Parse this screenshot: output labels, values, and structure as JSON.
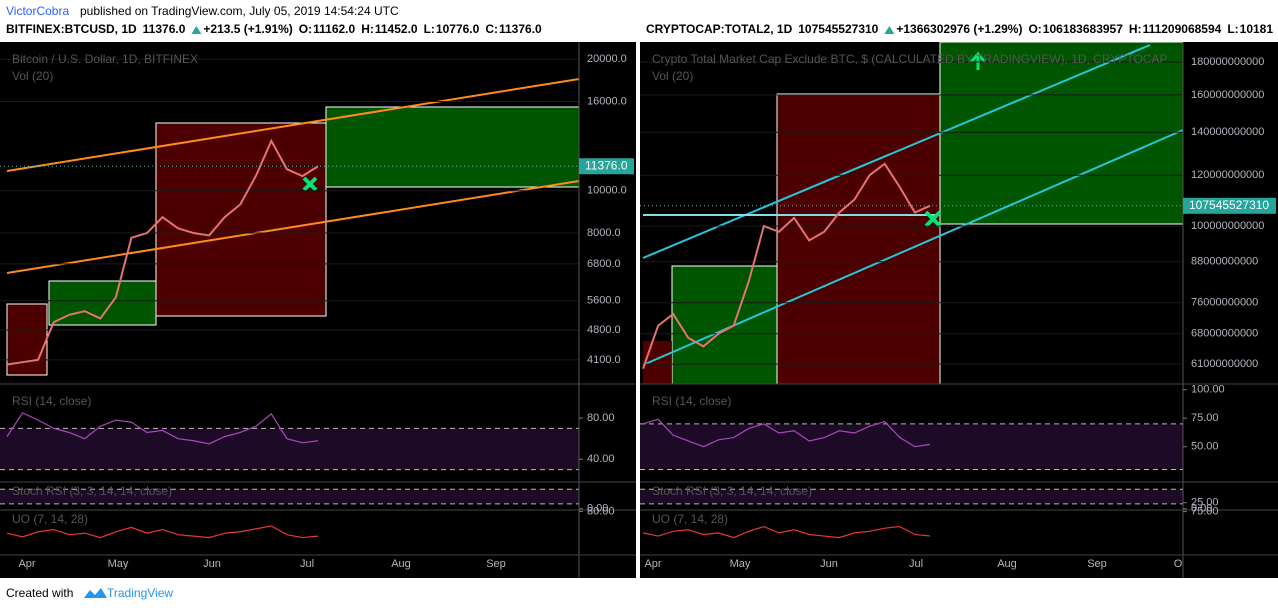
{
  "header": {
    "publisher": "VictorCobra",
    "published": "published on TradingView.com, July 05, 2019 14:54:24 UTC"
  },
  "footer": {
    "created": "Created with",
    "brand": "TradingView"
  },
  "chart_data": [
    {
      "type": "line",
      "symbol": "BITFINEX:BTCUSD, 1D",
      "last": "11376.0",
      "change": "+213.5 (+1.91%)",
      "ohlc": [
        {
          "label": "O:",
          "value": "11162.0"
        },
        {
          "label": "H:",
          "value": "11452.0"
        },
        {
          "label": "L:",
          "value": "10776.0"
        },
        {
          "label": "C:",
          "value": "11376.0"
        }
      ],
      "title": "Bitcoin / U.S. Dollar, 1D, BITFINEX",
      "volume_label": "Vol (20)",
      "log_scale": true,
      "ylim": [
        3610,
        21900
      ],
      "yticks": [
        {
          "value": 20000,
          "label": "20000.0"
        },
        {
          "value": 16000,
          "label": "16000.0"
        },
        {
          "value": 10000,
          "label": "10000.0"
        },
        {
          "value": 8000,
          "label": "8000.0"
        },
        {
          "value": 6800,
          "label": "6800.0"
        },
        {
          "value": 5600,
          "label": "5600.0"
        },
        {
          "value": 4800,
          "label": "4800.0"
        },
        {
          "value": 4100,
          "label": "4100.0"
        }
      ],
      "last_price": {
        "value": 11376,
        "label": "11376.0"
      },
      "series": [
        {
          "color": "#e57373",
          "values": [
            4000,
            4050,
            4100,
            5000,
            5200,
            5300,
            5100,
            5700,
            7800,
            8000,
            8700,
            8200,
            8000,
            7900,
            8700,
            9300,
            10800,
            13000,
            11200,
            10800,
            11376
          ]
        }
      ],
      "months": [
        "Apr",
        "May",
        "Jun",
        "Jul",
        "Aug",
        "Sep"
      ],
      "indicators": [
        {
          "title": "RSI (14, close)",
          "color": "#ab47bc",
          "ylim": [
            18,
            113
          ],
          "yticks": [
            {
              "value": 80,
              "label": "80.00"
            },
            {
              "value": 40,
              "label": "40.00"
            }
          ],
          "values": [
            62,
            85,
            78,
            70,
            66,
            60,
            72,
            78,
            76,
            66,
            68,
            60,
            58,
            55,
            62,
            66,
            72,
            84,
            60,
            56,
            58
          ]
        },
        {
          "title": "Stoch RSI (3, 3, 14, 14, close)",
          "color": "#2196f3",
          "ylim": [
            -5,
            110
          ],
          "yticks": [
            {
              "value": 0,
              "label": "0.00"
            }
          ]
        },
        {
          "title": "UO (7, 14, 28)",
          "color": "#e53935",
          "ylim": [
            20,
            82
          ],
          "yticks": [
            {
              "value": 80,
              "label": "80.00"
            }
          ],
          "values": [
            50,
            45,
            52,
            55,
            48,
            50,
            44,
            52,
            58,
            50,
            55,
            48,
            46,
            44,
            50,
            52,
            56,
            60,
            48,
            44,
            46
          ]
        }
      ]
    },
    {
      "type": "line",
      "symbol": "CRYPTOCAP:TOTAL2, 1D",
      "last": "107545527310",
      "change": "+1366302976 (+1.29%)",
      "ohlc": [
        {
          "label": "O:",
          "value": "106183683957"
        },
        {
          "label": "H:",
          "value": "111209068594"
        },
        {
          "label": "L:",
          "value": "10181"
        }
      ],
      "title": "Crypto Total Market Cap Exclude BTC, $ (CALCULATED BY TRADINGVIEW), 1D, CRYPTOCAP",
      "volume_label": "Vol (20)",
      "log_scale": true,
      "ylim": [
        56800000000,
        193400000000
      ],
      "yticks": [
        180000000000,
        160000000000,
        140000000000,
        120000000000,
        100000000000,
        88000000000,
        76000000000,
        68000000000,
        61000000000
      ],
      "last_price": {
        "value": 107545527310,
        "label": "107545527310"
      },
      "series": [
        {
          "color": "#e57373",
          "values": [
            60000000000,
            70000000000,
            73000000000,
            67000000000,
            65000000000,
            68000000000,
            70000000000,
            82000000000,
            100000000000,
            98000000000,
            103000000000,
            95000000000,
            98000000000,
            105000000000,
            110000000000,
            120000000000,
            125000000000,
            115000000000,
            105000000000,
            107545527310
          ]
        }
      ],
      "months": [
        "Apr",
        "May",
        "Jun",
        "Jul",
        "Aug",
        "Sep",
        "O"
      ],
      "indicators": [
        {
          "title": "RSI (14, close)",
          "color": "#ab47bc",
          "ylim": [
            19,
            105
          ],
          "yticks": [
            {
              "value": 100,
              "label": "100.00"
            },
            {
              "value": 75,
              "label": "75.00"
            },
            {
              "value": 50,
              "label": "50.00"
            }
          ],
          "values": [
            70,
            74,
            60,
            55,
            50,
            56,
            58,
            66,
            70,
            62,
            64,
            55,
            58,
            64,
            62,
            68,
            72,
            58,
            50,
            52
          ]
        },
        {
          "title": "Stoch RSI (3, 3, 14, 14, close)",
          "color": "#2196f3",
          "ylim": [
            -5,
            110
          ],
          "yticks": [
            {
              "value": 25,
              "label": "25.00"
            },
            {
              "value": 0,
              "label": "0.00"
            }
          ]
        },
        {
          "title": "UO (7, 14, 28)",
          "color": "#e53935",
          "ylim": [
            20,
            77
          ],
          "yticks": [
            {
              "value": 75,
              "label": "75.00"
            }
          ],
          "values": [
            48,
            44,
            50,
            52,
            46,
            48,
            42,
            50,
            56,
            48,
            52,
            46,
            44,
            42,
            48,
            50,
            54,
            56,
            46,
            44
          ]
        }
      ]
    }
  ]
}
